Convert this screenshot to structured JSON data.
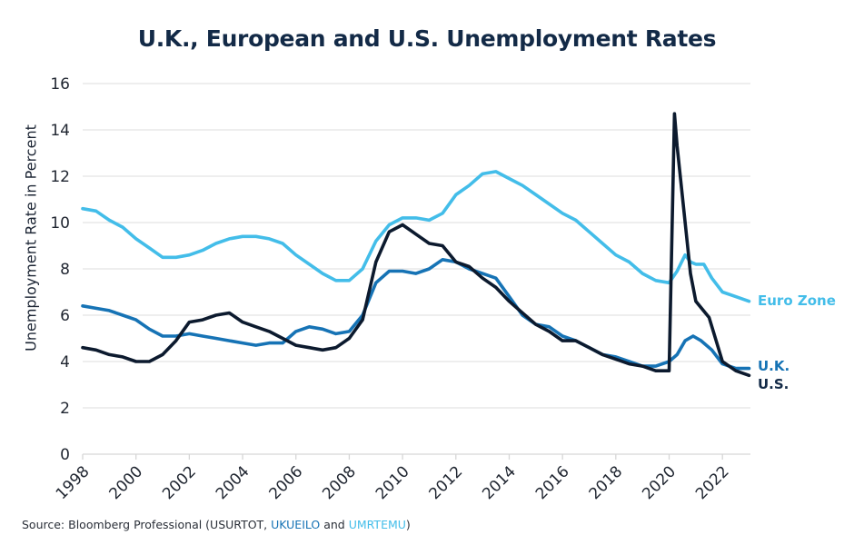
{
  "chart_data": {
    "type": "line",
    "title": "U.K., European and U.S. Unemployment Rates",
    "xlabel": "",
    "ylabel": "Unemployment Rate in Percent",
    "xlim": [
      1998,
      2023.1
    ],
    "ylim": [
      0,
      16
    ],
    "x_ticks": [
      1998,
      2000,
      2002,
      2004,
      2006,
      2008,
      2010,
      2012,
      2014,
      2016,
      2018,
      2020,
      2022
    ],
    "y_ticks": [
      0,
      2,
      4,
      6,
      8,
      10,
      12,
      14,
      16
    ],
    "grid": "horizontal",
    "legend": "end-of-line labels (right)",
    "series": [
      {
        "name": "Euro Zone",
        "color": "#43bde9",
        "x": [
          1998,
          1998.5,
          1999,
          1999.5,
          2000,
          2000.5,
          2001,
          2001.5,
          2002,
          2002.5,
          2003,
          2003.5,
          2004,
          2004.5,
          2005,
          2005.5,
          2006,
          2006.5,
          2007,
          2007.5,
          2008,
          2008.5,
          2009,
          2009.5,
          2010,
          2010.5,
          2011,
          2011.5,
          2012,
          2012.5,
          2013,
          2013.5,
          2014,
          2014.5,
          2015,
          2015.5,
          2016,
          2016.5,
          2017,
          2017.5,
          2018,
          2018.5,
          2019,
          2019.5,
          2020,
          2020.3,
          2020.6,
          2020.8,
          2021,
          2021.3,
          2021.6,
          2022,
          2022.5,
          2023
        ],
        "y": [
          10.6,
          10.5,
          10.1,
          9.8,
          9.3,
          8.9,
          8.5,
          8.5,
          8.6,
          8.8,
          9.1,
          9.3,
          9.4,
          9.4,
          9.3,
          9.1,
          8.6,
          8.2,
          7.8,
          7.5,
          7.5,
          8.0,
          9.2,
          9.9,
          10.2,
          10.2,
          10.1,
          10.4,
          11.2,
          11.6,
          12.1,
          12.2,
          11.9,
          11.6,
          11.2,
          10.8,
          10.4,
          10.1,
          9.6,
          9.1,
          8.6,
          8.3,
          7.8,
          7.5,
          7.4,
          7.9,
          8.6,
          8.3,
          8.2,
          8.2,
          7.6,
          7.0,
          6.8,
          6.6
        ]
      },
      {
        "name": "U.K.",
        "color": "#1673b5",
        "x": [
          1998,
          1998.5,
          1999,
          1999.5,
          2000,
          2000.5,
          2001,
          2001.5,
          2002,
          2002.5,
          2003,
          2003.5,
          2004,
          2004.5,
          2005,
          2005.5,
          2006,
          2006.5,
          2007,
          2007.5,
          2008,
          2008.5,
          2009,
          2009.5,
          2010,
          2010.5,
          2011,
          2011.5,
          2012,
          2012.5,
          2013,
          2013.5,
          2014,
          2014.5,
          2015,
          2015.5,
          2016,
          2016.5,
          2017,
          2017.5,
          2018,
          2018.5,
          2019,
          2019.5,
          2020,
          2020.3,
          2020.6,
          2020.9,
          2021.2,
          2021.6,
          2022,
          2022.5,
          2023
        ],
        "y": [
          6.4,
          6.3,
          6.2,
          6.0,
          5.8,
          5.4,
          5.1,
          5.1,
          5.2,
          5.1,
          5.0,
          4.9,
          4.8,
          4.7,
          4.8,
          4.8,
          5.3,
          5.5,
          5.4,
          5.2,
          5.3,
          6.0,
          7.4,
          7.9,
          7.9,
          7.8,
          8.0,
          8.4,
          8.3,
          8.0,
          7.8,
          7.6,
          6.8,
          6.0,
          5.6,
          5.5,
          5.1,
          4.9,
          4.6,
          4.3,
          4.2,
          4.0,
          3.8,
          3.8,
          4.0,
          4.3,
          4.9,
          5.1,
          4.9,
          4.5,
          3.9,
          3.7,
          3.7
        ]
      },
      {
        "name": "U.S.",
        "color": "#0c1a2e",
        "x": [
          1998,
          1998.5,
          1999,
          1999.5,
          2000,
          2000.5,
          2001,
          2001.5,
          2002,
          2002.5,
          2003,
          2003.5,
          2004,
          2004.5,
          2005,
          2005.5,
          2006,
          2006.5,
          2007,
          2007.5,
          2008,
          2008.5,
          2009,
          2009.5,
          2010,
          2010.5,
          2011,
          2011.5,
          2012,
          2012.5,
          2013,
          2013.5,
          2014,
          2014.5,
          2015,
          2015.5,
          2016,
          2016.5,
          2017,
          2017.5,
          2018,
          2018.5,
          2019,
          2019.5,
          2020,
          2020.2,
          2020.3,
          2020.5,
          2020.8,
          2021,
          2021.5,
          2022,
          2022.5,
          2023
        ],
        "y": [
          4.6,
          4.5,
          4.3,
          4.2,
          4.0,
          4.0,
          4.3,
          4.9,
          5.7,
          5.8,
          6.0,
          6.1,
          5.7,
          5.5,
          5.3,
          5.0,
          4.7,
          4.6,
          4.5,
          4.6,
          5.0,
          5.8,
          8.3,
          9.6,
          9.9,
          9.5,
          9.1,
          9.0,
          8.3,
          8.1,
          7.6,
          7.2,
          6.6,
          6.1,
          5.6,
          5.3,
          4.9,
          4.9,
          4.6,
          4.3,
          4.1,
          3.9,
          3.8,
          3.6,
          3.6,
          14.7,
          13.3,
          11.1,
          7.8,
          6.6,
          5.9,
          4.0,
          3.6,
          3.4
        ]
      }
    ]
  },
  "source": {
    "prefix": "Source: Bloomberg Professional (USURTOT, ",
    "uk_code": "UKUEILO",
    "middle": " and ",
    "eu_code": "UMRTEMU",
    "suffix": ")"
  }
}
